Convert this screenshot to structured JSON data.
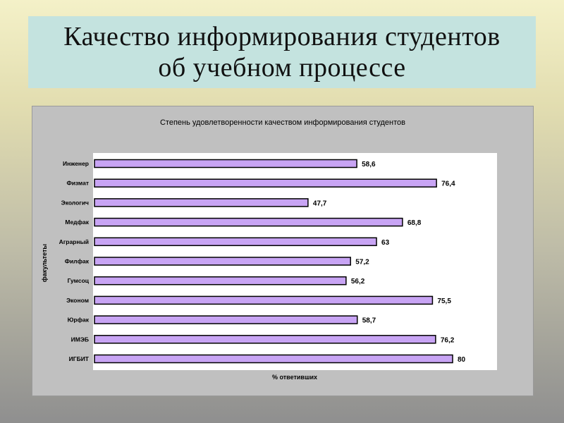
{
  "slide": {
    "title_line1": "Качество информирования студентов",
    "title_line2": "об учебном процессе"
  },
  "colors": {
    "bar_fill": "#c8a4f4",
    "bar_stroke": "#000000",
    "plot_bg": "#ffffff",
    "panel_bg": "#c0c0c0",
    "title_bg": "#c4e3df"
  },
  "chart_data": {
    "type": "bar",
    "orientation": "horizontal",
    "title": "Степень удовлетворенности качеством информирования студентов",
    "xlabel": "% ответивших",
    "ylabel": "факультеты",
    "categories": [
      "Инженер",
      "Физмат",
      "Экологич",
      "Медфак",
      "Аграрный",
      "Филфак",
      "Гумсоц",
      "Эконом",
      "Юрфак",
      "ИМЭБ",
      "ИГБИТ"
    ],
    "values": [
      58.6,
      76.4,
      47.7,
      68.8,
      63,
      57.2,
      56.2,
      75.5,
      58.7,
      76.2,
      80
    ],
    "value_labels": [
      "58,6",
      "76,4",
      "47,7",
      "68,8",
      "63",
      "57,2",
      "56,2",
      "75,5",
      "58,7",
      "76,2",
      "80"
    ],
    "xlim": [
      0,
      90
    ],
    "grid": false,
    "legend": "none"
  }
}
